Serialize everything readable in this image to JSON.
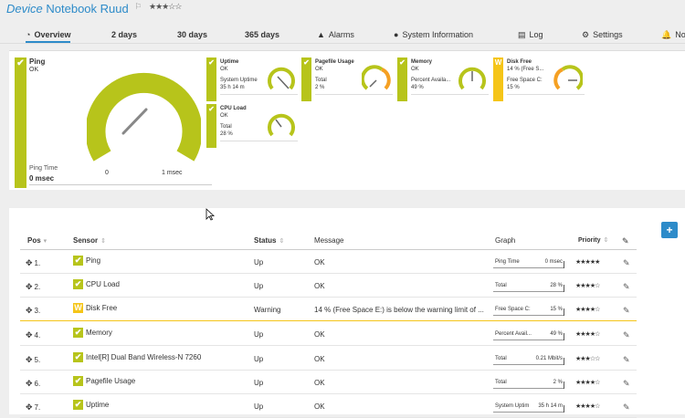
{
  "device": {
    "title_italic": "Device",
    "title_name": "Notebook Ruud",
    "flag": "⚐",
    "stars": "★★★☆☆"
  },
  "tabs": [
    {
      "label": "Overview",
      "icon": "◔"
    },
    {
      "label": "2  days",
      "icon": ""
    },
    {
      "label": "30 days",
      "icon": ""
    },
    {
      "label": "365 days",
      "icon": ""
    },
    {
      "label": "Alarms",
      "icon": "▲"
    },
    {
      "label": "System Information",
      "icon": "●"
    },
    {
      "label": "Log",
      "icon": "▤"
    },
    {
      "label": "Settings",
      "icon": "⚙"
    },
    {
      "label": "No",
      "icon": "🔔"
    }
  ],
  "ping": {
    "name": "Ping",
    "status": "OK",
    "channel": "Ping Time",
    "value": "0 msec",
    "gauge_min": "0",
    "gauge_max": "1 msec"
  },
  "gauges": [
    {
      "name": "Uptime",
      "status": "OK",
      "channel": "System Uptime",
      "value": "35 h 14 m"
    },
    {
      "name": "Pagefile Usage",
      "status": "OK",
      "channel": "Total",
      "value": "2 %"
    },
    {
      "name": "Memory",
      "status": "OK",
      "channel": "Percent Availa...",
      "value": "49 %"
    },
    {
      "name": "Disk Free",
      "status": "14 % (Free S...",
      "channel": "Free Space C:",
      "value": "15 %"
    },
    {
      "name": "CPU Load",
      "status": "OK",
      "channel": "Total",
      "value": "28 %"
    }
  ],
  "table": {
    "headers": {
      "pos": "Pos",
      "sensor": "Sensor",
      "status": "Status",
      "message": "Message",
      "graph": "Graph",
      "priority": "Priority"
    },
    "rows": [
      {
        "pos": "1.",
        "sensor": "Ping",
        "status": "Up",
        "message": "OK",
        "graph_label": "Ping Time",
        "graph_value": "0 msec",
        "priority": "★★★★★"
      },
      {
        "pos": "2.",
        "sensor": "CPU Load",
        "status": "Up",
        "message": "OK",
        "graph_label": "Total",
        "graph_value": "28 %",
        "priority": "★★★★☆"
      },
      {
        "pos": "3.",
        "sensor": "Disk Free",
        "status": "Warning",
        "message": "14 % (Free Space E:) is below the warning limit of ...",
        "graph_label": "Free Space C:",
        "graph_value": "15 %",
        "priority": "★★★★☆"
      },
      {
        "pos": "4.",
        "sensor": "Memory",
        "status": "Up",
        "message": "OK",
        "graph_label": "Percent Avail...",
        "graph_value": "49 %",
        "priority": "★★★★☆"
      },
      {
        "pos": "5.",
        "sensor": "Intel[R] Dual Band Wireless-N 7260",
        "status": "Up",
        "message": "OK",
        "graph_label": "Total",
        "graph_value": "0.21 Mbit/s",
        "priority": "★★★☆☆"
      },
      {
        "pos": "6.",
        "sensor": "Pagefile Usage",
        "status": "Up",
        "message": "OK",
        "graph_label": "Total",
        "graph_value": "2 %",
        "priority": "★★★★☆"
      },
      {
        "pos": "7.",
        "sensor": "Uptime",
        "status": "Up",
        "message": "OK",
        "graph_label": "System Uptim",
        "graph_value": "35 h 14 m",
        "priority": "★★★★☆"
      }
    ]
  },
  "icons": {
    "check": "✔",
    "warning": "W",
    "move": "✥",
    "edit": "✎",
    "add": "+"
  },
  "colors": {
    "ok": "#b7c41b",
    "warning": "#f5c518",
    "accent": "#2d8bc9"
  }
}
